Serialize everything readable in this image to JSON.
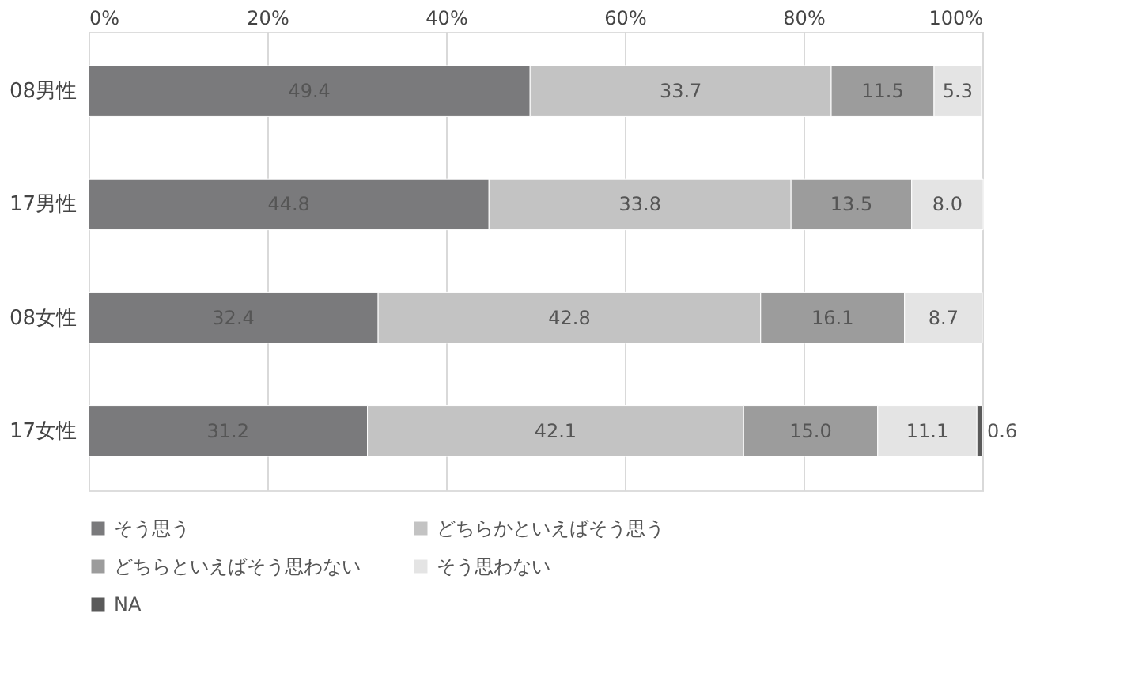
{
  "chart_data": {
    "type": "bar",
    "orientation": "horizontal",
    "stacked": true,
    "categories": [
      "08男性",
      "17男性",
      "08女性",
      "17女性"
    ],
    "series": [
      {
        "name": "そう思う",
        "color": "#7a7a7c",
        "values": [
          49.4,
          44.8,
          32.4,
          31.2
        ],
        "value_labels": [
          "49.4",
          "44.8",
          "32.4",
          "31.2"
        ]
      },
      {
        "name": "どちらかといえばそう思う",
        "color": "#c3c3c3",
        "values": [
          33.7,
          33.8,
          42.8,
          42.1
        ],
        "value_labels": [
          "33.7",
          "33.8",
          "42.8",
          "42.1"
        ]
      },
      {
        "name": "どちらといえばそう思わない",
        "color": "#9c9c9c",
        "values": [
          11.5,
          13.5,
          16.1,
          15.0
        ],
        "value_labels": [
          "11.5",
          "13.5",
          "16.1",
          "15.0"
        ]
      },
      {
        "name": "そう思わない",
        "color": "#e4e4e4",
        "values": [
          5.3,
          8.0,
          8.7,
          11.1
        ],
        "value_labels": [
          "5.3",
          "8.0",
          "8.7",
          "11.1"
        ]
      },
      {
        "name": "NA",
        "color": "#5a5a5a",
        "values": [
          null,
          null,
          null,
          0.6
        ],
        "value_labels": [
          null,
          null,
          null,
          "0.6"
        ]
      }
    ],
    "xlim": [
      0,
      100
    ],
    "xticks": [
      {
        "value": 0,
        "label": "0%"
      },
      {
        "value": 20,
        "label": "20%"
      },
      {
        "value": 40,
        "label": "40%"
      },
      {
        "value": 60,
        "label": "60%"
      },
      {
        "value": 80,
        "label": "80%"
      },
      {
        "value": 100,
        "label": "100%"
      }
    ],
    "grid": "x",
    "legend": "bottom"
  }
}
